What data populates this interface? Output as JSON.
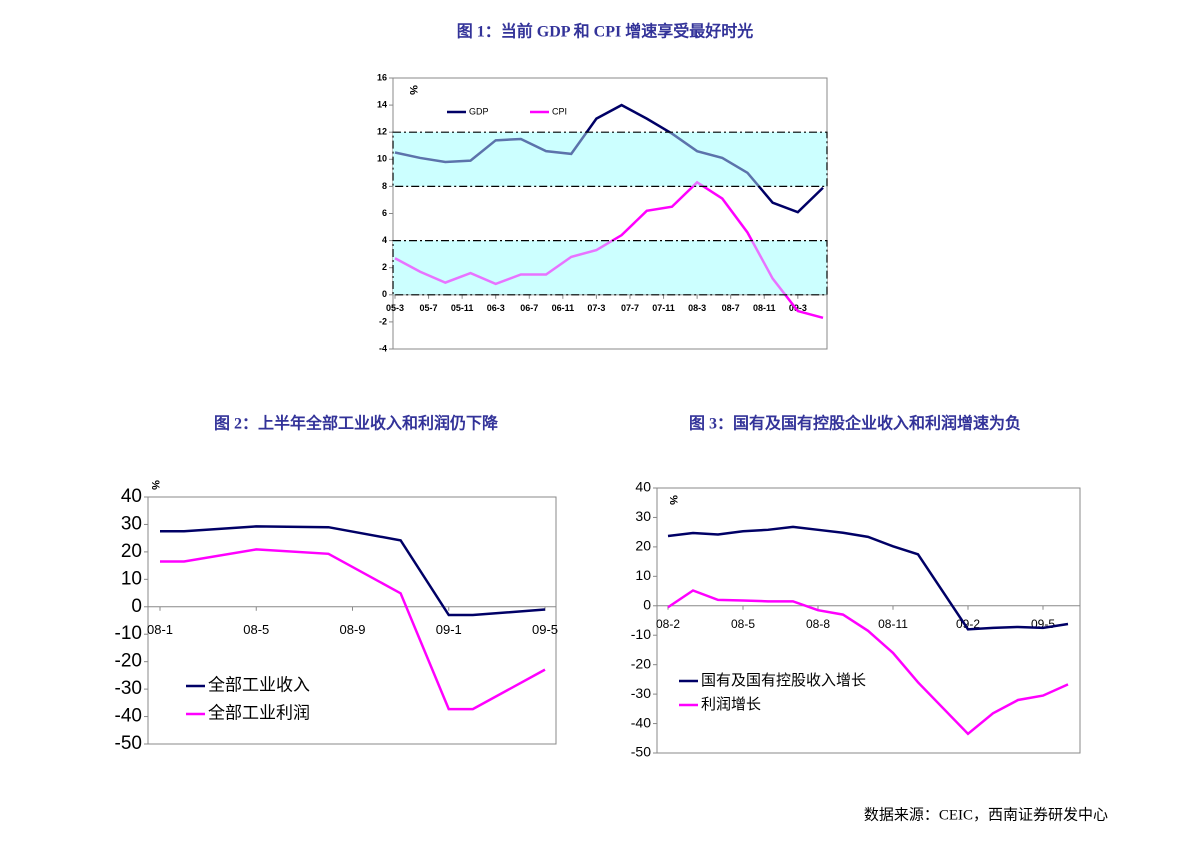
{
  "chart_data": [
    {
      "type": "line",
      "title": "图 1：当前 GDP 和 CPI 增速享受最好时光",
      "unit": "%",
      "legend": "top",
      "x": [
        "2005-03",
        "2005-06",
        "2005-09",
        "2005-12",
        "2006-03",
        "2006-06",
        "2006-09",
        "2006-12",
        "2007-03",
        "2007-06",
        "2007-09",
        "2007-12",
        "2008-03",
        "2008-06",
        "2008-09",
        "2008-12",
        "2009-03",
        "2009-06"
      ],
      "series": [
        {
          "name": "GDP",
          "color": "#000066",
          "values": [
            10.5,
            10.1,
            9.8,
            9.9,
            11.4,
            11.5,
            10.6,
            10.4,
            13.0,
            14.0,
            13.0,
            11.9,
            10.6,
            10.1,
            9.0,
            6.8,
            6.1,
            7.9
          ]
        },
        {
          "name": "CPI",
          "color": "#ff00ff",
          "values": [
            2.7,
            1.7,
            0.9,
            1.6,
            0.8,
            1.5,
            1.5,
            2.8,
            3.3,
            4.4,
            6.2,
            6.5,
            8.3,
            7.1,
            4.6,
            1.2,
            -1.2,
            -1.7
          ]
        }
      ],
      "bands": [
        [
          8,
          12
        ],
        [
          0,
          4
        ]
      ],
      "xlim": [
        "2005-03",
        "2009-06"
      ],
      "xticks": [
        {
          "value": "2005-03",
          "label": "05-3"
        },
        {
          "value": "2005-07",
          "label": "05-7"
        },
        {
          "value": "2005-11",
          "label": "05-11"
        },
        {
          "value": "2006-03",
          "label": "06-3"
        },
        {
          "value": "2006-07",
          "label": "06-7"
        },
        {
          "value": "2006-11",
          "label": "06-11"
        },
        {
          "value": "2007-03",
          "label": "07-3"
        },
        {
          "value": "2007-07",
          "label": "07-7"
        },
        {
          "value": "2007-11",
          "label": "07-11"
        },
        {
          "value": "2008-03",
          "label": "08-3"
        },
        {
          "value": "2008-07",
          "label": "08-7"
        },
        {
          "value": "2008-11",
          "label": "08-11"
        },
        {
          "value": "2009-03",
          "label": "09-3"
        }
      ],
      "ylim": [
        -4,
        16
      ],
      "yticks": [
        -4,
        -2,
        0,
        2,
        4,
        6,
        8,
        10,
        12,
        14,
        16
      ]
    },
    {
      "type": "line",
      "title": "图 2：上半年全部工业收入和利润仍下降",
      "unit": "%",
      "legend": "bottom-left",
      "x": [
        "2008-01",
        "2008-02",
        "2008-05",
        "2008-08",
        "2008-11",
        "2009-01",
        "2009-02",
        "2009-05"
      ],
      "series": [
        {
          "name": "全部工业收入",
          "color": "#000066",
          "values": [
            27.5,
            27.5,
            29.3,
            29.0,
            24.2,
            -3.0,
            -3.0,
            -1.0
          ]
        },
        {
          "name": "全部工业利润",
          "color": "#ff00ff",
          "values": [
            16.5,
            16.5,
            20.9,
            19.3,
            4.9,
            -37.3,
            -37.3,
            -22.9
          ]
        }
      ],
      "xlim": [
        "2008-01",
        "2009-05"
      ],
      "xticks": [
        {
          "value": "2008-01",
          "label": "08-1"
        },
        {
          "value": "2008-05",
          "label": "08-5"
        },
        {
          "value": "2008-09",
          "label": "08-9"
        },
        {
          "value": "2009-01",
          "label": "09-1"
        },
        {
          "value": "2009-05",
          "label": "09-5"
        }
      ],
      "ylim": [
        -50,
        40
      ],
      "yticks": [
        -50,
        -40,
        -30,
        -20,
        -10,
        0,
        10,
        20,
        30,
        40
      ]
    },
    {
      "type": "line",
      "title": "图 3：国有及国有控股企业收入和利润增速为负",
      "unit": "%",
      "legend": "bottom-left",
      "x": [
        "2008-02",
        "2008-03",
        "2008-04",
        "2008-05",
        "2008-06",
        "2008-07",
        "2008-08",
        "2008-09",
        "2008-10",
        "2008-11",
        "2008-12",
        "2009-02",
        "2009-03",
        "2009-04",
        "2009-05",
        "2009-06"
      ],
      "series": [
        {
          "name": "国有及国有控股收入增长",
          "color": "#000066",
          "values": [
            23.7,
            24.7,
            24.2,
            25.3,
            25.8,
            26.8,
            25.8,
            24.8,
            23.4,
            20.2,
            17.5,
            -8.0,
            -7.5,
            -7.2,
            -7.5,
            -6.2
          ]
        },
        {
          "name": "利润增长",
          "color": "#ff00ff",
          "values": [
            -0.5,
            5.2,
            2.0,
            1.8,
            1.5,
            1.5,
            -1.5,
            -3.0,
            -8.5,
            -16.0,
            -26.0,
            -43.5,
            -36.5,
            -32.0,
            -30.5,
            -26.7
          ]
        }
      ],
      "xlim": [
        "2008-02",
        "2009-06"
      ],
      "xticks": [
        {
          "value": "2008-02",
          "label": "08-2"
        },
        {
          "value": "2008-05",
          "label": "08-5"
        },
        {
          "value": "2008-08",
          "label": "08-8"
        },
        {
          "value": "2008-11",
          "label": "08-11"
        },
        {
          "value": "2009-02",
          "label": "09-2"
        },
        {
          "value": "2009-05",
          "label": "09-5"
        }
      ],
      "ylim": [
        -50,
        40
      ],
      "yticks": [
        -50,
        -40,
        -30,
        -20,
        -10,
        0,
        10,
        20,
        30,
        40
      ]
    }
  ],
  "source": "数据来源：CEIC，西南证券研发中心"
}
